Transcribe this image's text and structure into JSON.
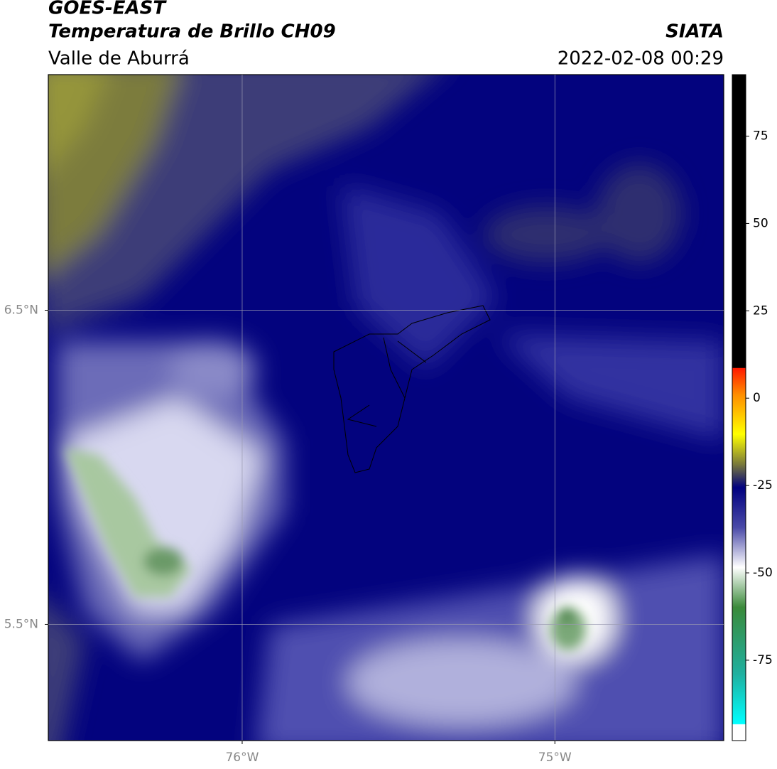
{
  "header": {
    "title": "GOES-EAST",
    "subtitle": "Temperatura de Brillo CH09",
    "region": "Valle de Aburrá",
    "source": "SIATA",
    "datetime": "2022-02-08 00:29"
  },
  "map": {
    "xlim": [
      -76.62,
      -74.46
    ],
    "ylim": [
      5.13,
      7.25
    ],
    "xticks": [
      {
        "value": -76,
        "label": "76°W"
      },
      {
        "value": -75,
        "label": "75°W"
      }
    ],
    "yticks": [
      {
        "value": 6.5,
        "label": "6.5°N"
      },
      {
        "value": 5.5,
        "label": "5.5°N"
      }
    ],
    "grid": true
  },
  "colorbar": {
    "lim": [
      -98,
      92.6
    ],
    "ticks": [
      75,
      50,
      25,
      0,
      -25,
      -50,
      -75
    ]
  }
}
